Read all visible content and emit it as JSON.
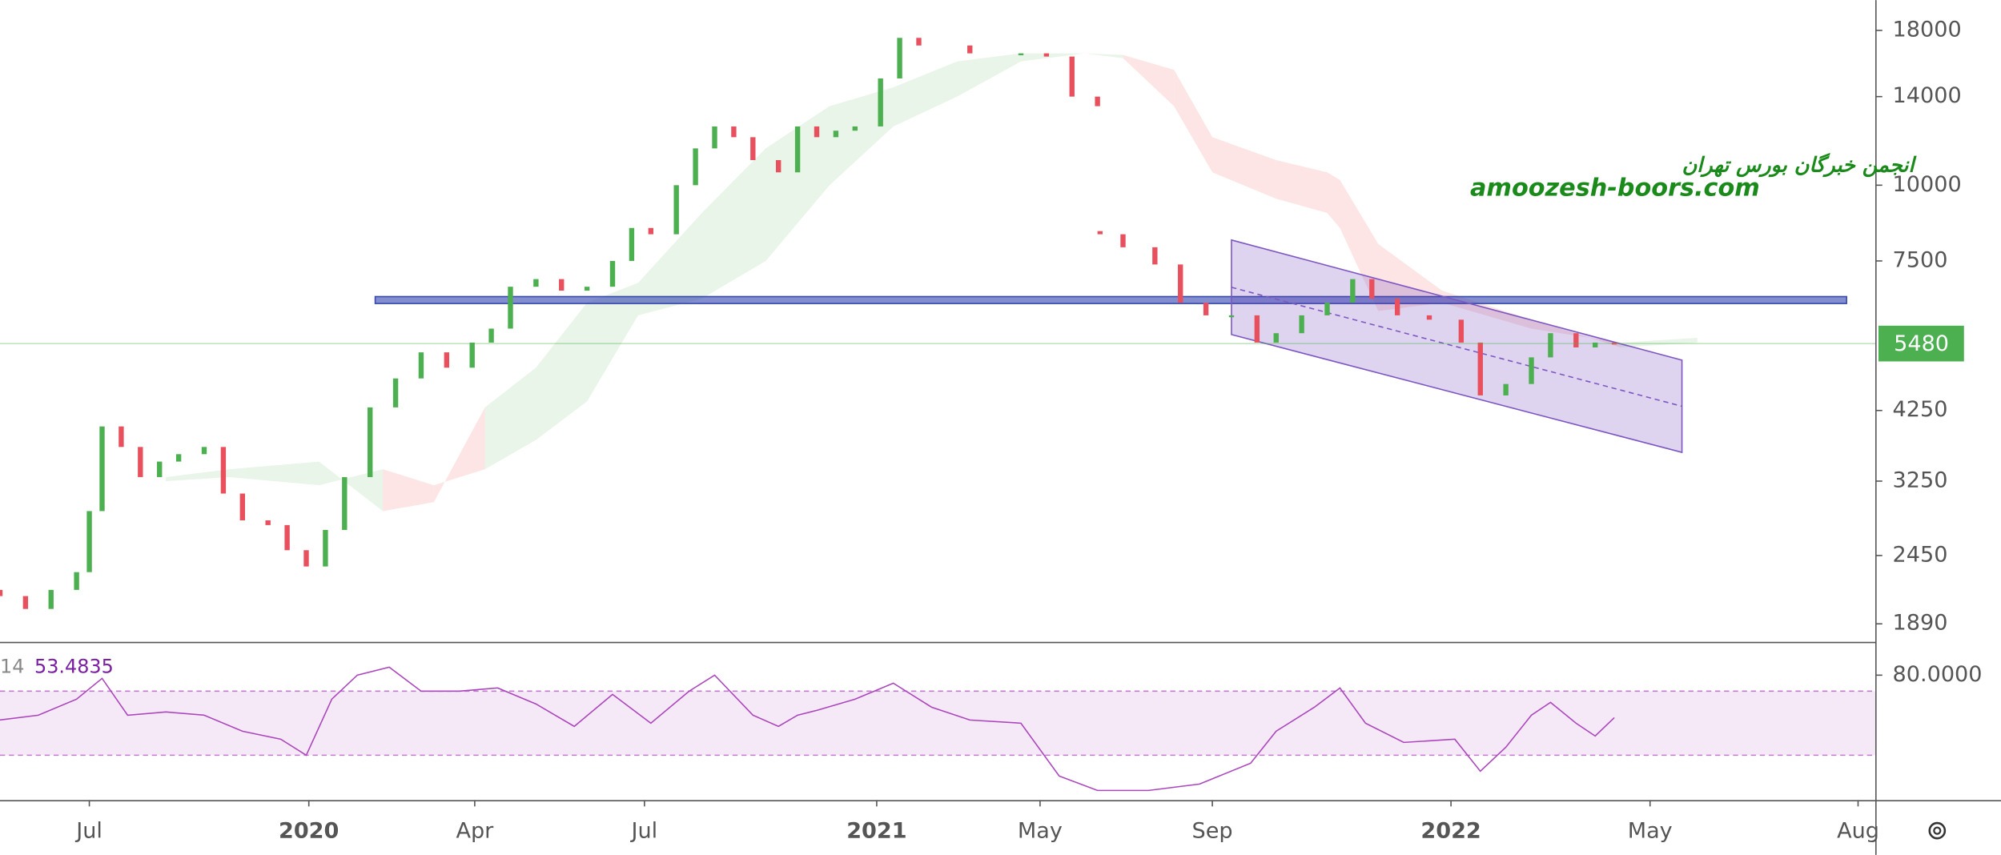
{
  "chart_data": {
    "type": "candlestick",
    "watermark": [
      "انجمن خبرگان بورس تهران",
      "amoozesh-boors.com"
    ],
    "log_scale": true,
    "xlim": [
      0,
      147
    ],
    "xticks": [
      {
        "value": 7,
        "label": "Jul"
      },
      {
        "value": 24.2,
        "label": "2020"
      },
      {
        "value": 37.2,
        "label": "Apr"
      },
      {
        "value": 50.5,
        "label": "Jul"
      },
      {
        "value": 68.7,
        "label": "2021"
      },
      {
        "value": 81.5,
        "label": "May"
      },
      {
        "value": 95,
        "label": "Sep"
      },
      {
        "value": 113.7,
        "label": "2022"
      },
      {
        "value": 129.3,
        "label": "May"
      },
      {
        "value": 145.6,
        "label": "Aug"
      }
    ],
    "ylim": [
      1765,
      20200
    ],
    "yticks": [
      18000,
      14000,
      10000,
      7500,
      4250,
      3250,
      2450,
      1890
    ],
    "up_color": "#4caf50",
    "down_color": "#e8505e",
    "candles": {
      "x": [
        0,
        2,
        4,
        6,
        7,
        8,
        9.5,
        11,
        12.5,
        14,
        16,
        17.5,
        19,
        21,
        22.5,
        24,
        25.5,
        27,
        29,
        31,
        33,
        35,
        37,
        38.5,
        40,
        42,
        44,
        46,
        48,
        49.5,
        51,
        53,
        54.5,
        56,
        57.5,
        59,
        61,
        62.5,
        64,
        65.5,
        67,
        69,
        70.5,
        72,
        76,
        80,
        82,
        84,
        86,
        86.2,
        88,
        90.5,
        92.5,
        94.5,
        96.5,
        98.5,
        100,
        102,
        104,
        106,
        107.5,
        109.5,
        112,
        114.5,
        116,
        118,
        120,
        121.5,
        123.5,
        125,
        126.5
      ],
      "open": [
        2150,
        2100,
        2000,
        2150,
        2300,
        2900,
        4000,
        3700,
        3300,
        3500,
        3600,
        3700,
        3100,
        2800,
        2750,
        2500,
        2350,
        2700,
        3300,
        4300,
        4800,
        5300,
        5000,
        5500,
        5800,
        6800,
        7000,
        6700,
        6800,
        7500,
        8500,
        8300,
        10000,
        11500,
        12500,
        12000,
        11000,
        10500,
        12500,
        12000,
        12300,
        12500,
        15000,
        17500,
        17000,
        16500,
        16500,
        16300,
        14000,
        8400,
        8300,
        7900,
        7400,
        6400,
        6100,
        6100,
        5500,
        5700,
        6100,
        6400,
        7000,
        6500,
        6100,
        6000,
        5500,
        4500,
        4700,
        5200,
        5700,
        5400,
        5500
      ],
      "close": [
        2100,
        2000,
        2150,
        2300,
        2900,
        4000,
        3700,
        3300,
        3500,
        3600,
        3700,
        3100,
        2800,
        2750,
        2500,
        2350,
        2700,
        3300,
        4300,
        4800,
        5300,
        5000,
        5500,
        5800,
        6800,
        7000,
        6700,
        6800,
        7500,
        8500,
        8300,
        10000,
        11500,
        12500,
        12000,
        11000,
        10500,
        12500,
        12000,
        12300,
        12500,
        15000,
        17500,
        17000,
        16500,
        16500,
        16300,
        14000,
        13500,
        8300,
        7900,
        7400,
        6400,
        6100,
        6100,
        5500,
        5700,
        6100,
        6400,
        7000,
        6500,
        6100,
        6000,
        5500,
        4500,
        4700,
        5200,
        5700,
        5400,
        5500,
        5480
      ]
    },
    "cloud": {
      "x": [
        13,
        18,
        25,
        30,
        34,
        38,
        42,
        46,
        50,
        55,
        60,
        65,
        70,
        75,
        80,
        85,
        88,
        92,
        95,
        100,
        104,
        105,
        108,
        113,
        120,
        127,
        133
      ],
      "span_a": [
        3300,
        3400,
        3500,
        2900,
        3000,
        4300,
        5000,
        6400,
        6900,
        9000,
        11500,
        13500,
        14500,
        16000,
        16500,
        16500,
        16200,
        13500,
        10500,
        9500,
        9000,
        8500,
        6200,
        6400,
        5800,
        5500,
        5600
      ],
      "span_b": [
        3250,
        3300,
        3200,
        3400,
        3200,
        3400,
        3800,
        4400,
        6100,
        6500,
        7500,
        10000,
        12500,
        14000,
        16000,
        16500,
        16400,
        15500,
        12000,
        11000,
        10500,
        10200,
        8000,
        6700,
        6000,
        5400,
        5500
      ]
    },
    "zone": {
      "x": [
        29.4,
        144.7
      ],
      "range": [
        6380,
        6550
      ]
    },
    "channel": {
      "x": [
        96.5,
        131.8
      ],
      "upper": [
        8120,
        5145
      ],
      "lower": [
        5670,
        3625
      ]
    },
    "rsi": {
      "length": 14,
      "color": "#ab47bc",
      "ylim": [
        2,
        100
      ],
      "yticks": [
        {
          "value": 80,
          "label": "80.0000"
        }
      ],
      "bands": [
        30,
        70
      ],
      "x": [
        0,
        3,
        6,
        8,
        10,
        13,
        16,
        19,
        22,
        24,
        26,
        28,
        30.5,
        33,
        36,
        39,
        42,
        45,
        48,
        51,
        54,
        56,
        59,
        61,
        62.5,
        64,
        67,
        70,
        73,
        76,
        80,
        83,
        86,
        90,
        94,
        98,
        100,
        103,
        105,
        107,
        110,
        114,
        116,
        118,
        120,
        121.5,
        123.5,
        125,
        126.5
      ],
      "values": [
        52,
        55,
        65,
        78,
        55,
        57,
        55,
        45,
        40,
        30,
        65,
        80,
        85,
        70,
        70,
        72,
        62,
        48,
        68,
        50,
        70,
        80,
        55,
        48,
        55,
        58,
        65,
        75,
        60,
        52,
        50,
        17,
        8,
        8,
        12,
        25,
        45,
        60,
        72,
        50,
        38,
        40,
        20,
        35,
        55,
        63,
        50,
        42,
        53.4835
      ]
    }
  }
}
